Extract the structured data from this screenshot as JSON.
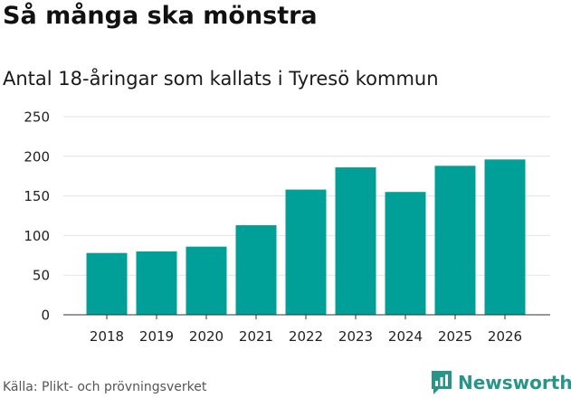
{
  "title": "Så många ska mönstra",
  "subtitle": "Antal 18-åringar som kallats i Tyresö kommun",
  "source": "Källa: Plikt- och prövningsverket",
  "brand": {
    "name": "Newsworthy",
    "logo": "chart-bubble-logo"
  },
  "colors": {
    "bar": "#00a099",
    "grid": "#e2e2e2",
    "axis": "#333333",
    "brand": "#27958a"
  },
  "chart_data": {
    "type": "bar",
    "title": "Så många ska mönstra",
    "subtitle": "Antal 18-åringar som kallats i Tyresö kommun",
    "xlabel": "",
    "ylabel": "",
    "categories": [
      "2018",
      "2019",
      "2020",
      "2021",
      "2022",
      "2023",
      "2024",
      "2025",
      "2026"
    ],
    "values": [
      78,
      80,
      86,
      113,
      158,
      186,
      155,
      188,
      196
    ],
    "ylim": [
      0,
      250
    ],
    "yticks": [
      0,
      50,
      100,
      150,
      200,
      250
    ],
    "grid": true,
    "legend": "none"
  }
}
